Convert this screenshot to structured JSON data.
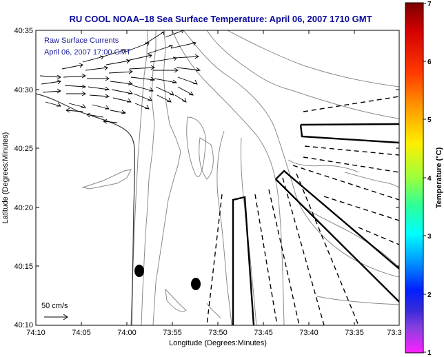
{
  "title": "RU COOL  NOAA–18  Sea Surface Temperature:  April 06, 2007 1710 GMT",
  "map": {
    "xlabel": "Longitude (Degrees:Minutes)",
    "ylabel": "Latitude (Degrees:Minutes)",
    "x_ticks": [
      "74:10",
      "74:05",
      "74:00",
      "73:55",
      "73:50",
      "73:45",
      "73:40",
      "73:35",
      "73:3"
    ],
    "y_ticks": [
      "40:35",
      "40:30",
      "40:25",
      "40:20",
      "40:15",
      "40:10"
    ],
    "overlay_label_1": "Raw Surface Currents",
    "overlay_label_2": "April 06, 2007 17:00 GMT",
    "scale_label": "50 cm/s"
  },
  "colorbar": {
    "label": "Temperature (°C)",
    "ticks": [
      "7",
      "6",
      "5",
      "4",
      "3",
      "2",
      "1"
    ],
    "min": 1,
    "max": 7
  },
  "colors": {
    "title": "#0a0a9a",
    "overlay_text": "#1a1a9a",
    "contour": "#8a8a8a",
    "annotation": "#000000"
  }
}
